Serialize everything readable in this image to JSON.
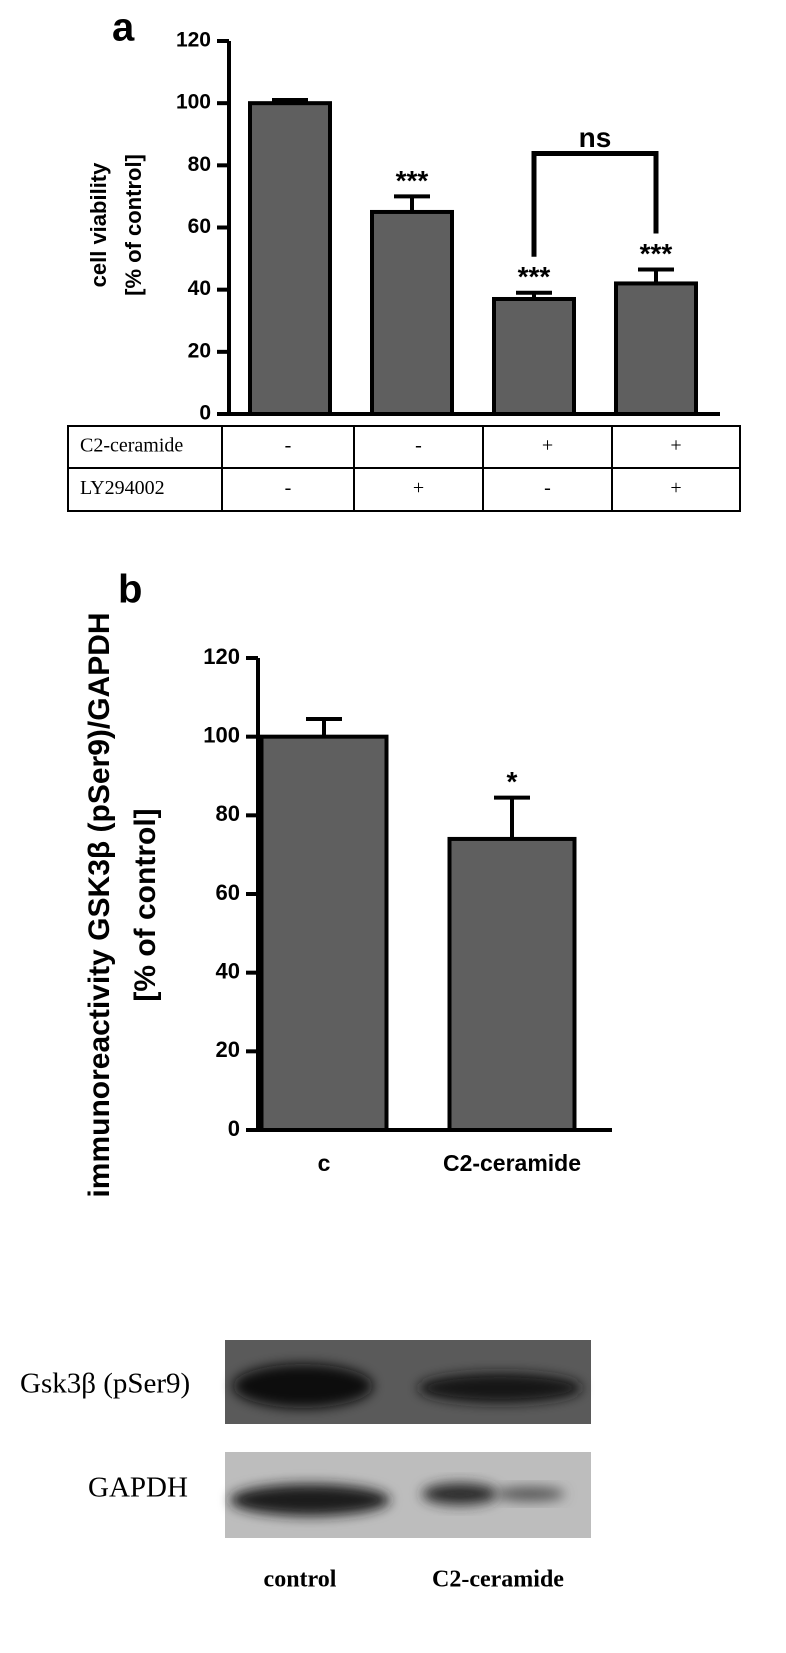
{
  "chart_data": [
    {
      "type": "bar",
      "panel": "a",
      "ylabel": [
        "cell viability",
        "[% of control]"
      ],
      "values": [
        100,
        65,
        37,
        42
      ],
      "errors": [
        1,
        5,
        2,
        4.5
      ],
      "value_annotations": [
        null,
        "***",
        "***",
        "***"
      ],
      "bracket": {
        "label": "ns",
        "from": 2,
        "to": 3
      },
      "color": "#5f5f5f",
      "ylim": [
        0,
        120
      ],
      "yticks": [
        0,
        20,
        40,
        60,
        80,
        100,
        120
      ]
    },
    {
      "type": "bar",
      "panel": "b",
      "ylabel": [
        "immunoreactivity GSK3β (pSer9)/GAPDH",
        "[% of control]"
      ],
      "categories": [
        "c",
        "C2-ceramide"
      ],
      "values": [
        100,
        74
      ],
      "errors": [
        4.5,
        10.5
      ],
      "value_annotations": [
        null,
        "*"
      ],
      "color": "#5f5f5f",
      "ylim": [
        0,
        120
      ],
      "yticks": [
        0,
        20,
        40,
        60,
        80,
        100,
        120
      ]
    }
  ],
  "table": {
    "rows": [
      [
        "C2-ceramide",
        "-",
        "-",
        "+",
        "+"
      ],
      [
        "LY294002",
        "-",
        "+",
        "-",
        "+"
      ]
    ]
  },
  "blot": {
    "rows": [
      "Gsk3β (pSer9)",
      "GAPDH"
    ],
    "lanes": [
      "control",
      "C2-ceramide"
    ]
  }
}
